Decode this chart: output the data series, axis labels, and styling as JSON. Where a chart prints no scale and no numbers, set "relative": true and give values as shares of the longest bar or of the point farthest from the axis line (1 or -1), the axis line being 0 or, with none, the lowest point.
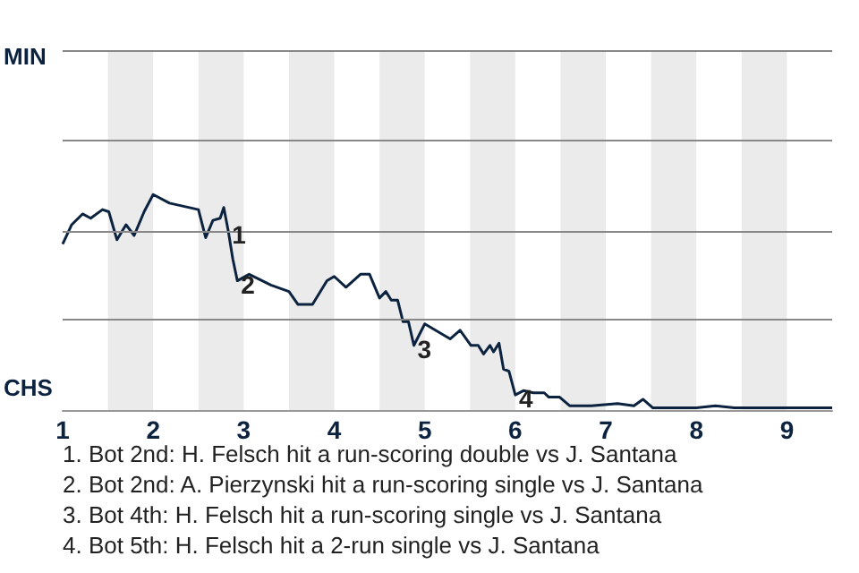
{
  "chart_data": {
    "type": "line",
    "relative": true,
    "x": [
      1.0,
      1.1,
      1.22,
      1.31,
      1.44,
      1.51,
      1.6,
      1.7,
      1.79,
      1.9,
      2.0,
      2.18,
      2.5,
      2.58,
      2.66,
      2.74,
      2.78,
      2.83,
      2.88,
      2.93,
      3.06,
      3.3,
      3.5,
      3.6,
      3.76,
      3.92,
      4.0,
      4.13,
      4.29,
      4.39,
      4.5,
      4.57,
      4.63,
      4.7,
      4.76,
      4.82,
      4.88,
      5.0,
      5.28,
      5.39,
      5.51,
      5.59,
      5.65,
      5.72,
      5.76,
      5.82,
      5.87,
      5.93,
      6.0,
      6.09,
      6.2,
      6.32,
      6.37,
      6.49,
      6.6,
      6.84,
      7.13,
      7.31,
      7.41,
      7.52,
      7.74,
      8.0,
      8.21,
      8.42,
      9.5
    ],
    "series": [
      {
        "color": "#0c2340",
        "values": [
          0.77,
          0.86,
          0.91,
          0.89,
          0.93,
          0.92,
          0.79,
          0.86,
          0.81,
          0.92,
          1.0,
          0.96,
          0.93,
          0.8,
          0.88,
          0.89,
          0.94,
          0.83,
          0.7,
          0.6,
          0.63,
          0.58,
          0.55,
          0.49,
          0.49,
          0.6,
          0.62,
          0.57,
          0.63,
          0.63,
          0.52,
          0.55,
          0.51,
          0.51,
          0.41,
          0.41,
          0.3,
          0.4,
          0.33,
          0.37,
          0.3,
          0.3,
          0.26,
          0.3,
          0.27,
          0.31,
          0.19,
          0.18,
          0.07,
          0.09,
          0.08,
          0.08,
          0.06,
          0.06,
          0.02,
          0.02,
          0.03,
          0.02,
          0.05,
          0.01,
          0.01,
          0.01,
          0.02,
          0.01,
          0.01
        ]
      }
    ],
    "xlim": [
      1,
      9.5
    ],
    "xticks": [
      1,
      2,
      3,
      4,
      5,
      6,
      7,
      8,
      9
    ],
    "ref_lines": [
      {
        "axis": "y",
        "value": 0.42,
        "color": "#888888"
      },
      {
        "axis": "y",
        "value": 0.83,
        "color": "#888888"
      },
      {
        "axis": "y",
        "value": 1.25,
        "color": "#888888"
      },
      {
        "axis": "y",
        "value": 1.67,
        "color": "#888888"
      }
    ],
    "marker": "none",
    "bands": [
      {
        "axis": "x",
        "from": 1.5,
        "to": 2,
        "color": "#ebebeb"
      },
      {
        "axis": "x",
        "from": 2.5,
        "to": 3,
        "color": "#ebebeb"
      },
      {
        "axis": "x",
        "from": 3.5,
        "to": 4,
        "color": "#ebebeb"
      },
      {
        "axis": "x",
        "from": 4.5,
        "to": 5,
        "color": "#ebebeb"
      },
      {
        "axis": "x",
        "from": 5.5,
        "to": 6,
        "color": "#ebebeb"
      },
      {
        "axis": "x",
        "from": 6.5,
        "to": 7,
        "color": "#ebebeb"
      },
      {
        "axis": "x",
        "from": 7.5,
        "to": 8,
        "color": "#ebebeb"
      },
      {
        "axis": "x",
        "from": 8.5,
        "to": 9,
        "color": "#ebebeb"
      }
    ],
    "annotations": [
      "MIN",
      "CHS",
      {
        "text": "1",
        "x": 2.83,
        "y": 0.83
      },
      {
        "text": "2",
        "x": 2.93,
        "y": 0.6
      },
      {
        "text": "3",
        "x": 4.88,
        "y": 0.3
      },
      {
        "text": "4",
        "x": 6.0,
        "y": 0.07
      },
      "1. Bot 2nd: H. Felsch hit a run-scoring double vs J. Santana",
      "2. Bot 2nd: A. Pierzynski hit a run-scoring single vs J. Santana",
      "3. Bot 4th: H. Felsch hit a run-scoring single vs J. Santana",
      "4. Bot 5th: H. Felsch hit a 2-run single vs J. Santana"
    ]
  }
}
